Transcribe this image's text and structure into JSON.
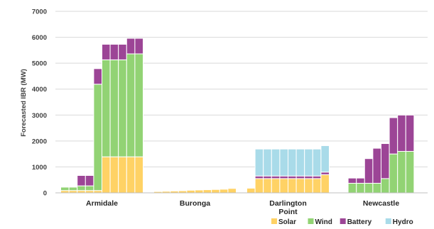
{
  "chart_data": {
    "type": "bar",
    "stacked": true,
    "ylabel": "Forecasted IBR (MW)",
    "ylim": [
      0,
      7000
    ],
    "yticks": [
      0,
      1000,
      2000,
      3000,
      4000,
      5000,
      6000,
      7000
    ],
    "grid": true,
    "legend_position": "bottom-right",
    "groups": [
      {
        "label": "Armidale",
        "stacks": [
          {
            "Solar": 90,
            "Wind": 130,
            "Battery": 0,
            "Hydro": 0
          },
          {
            "Solar": 90,
            "Wind": 130,
            "Battery": 0,
            "Hydro": 0
          },
          {
            "Solar": 90,
            "Wind": 180,
            "Battery": 400,
            "Hydro": 0
          },
          {
            "Solar": 90,
            "Wind": 180,
            "Battery": 400,
            "Hydro": 0
          },
          {
            "Solar": 90,
            "Wind": 4100,
            "Battery": 600,
            "Hydro": 0
          },
          {
            "Solar": 1390,
            "Wind": 3740,
            "Battery": 600,
            "Hydro": 0
          },
          {
            "Solar": 1390,
            "Wind": 3740,
            "Battery": 600,
            "Hydro": 0
          },
          {
            "Solar": 1390,
            "Wind": 3740,
            "Battery": 600,
            "Hydro": 0
          },
          {
            "Solar": 1390,
            "Wind": 3970,
            "Battery": 600,
            "Hydro": 0
          },
          {
            "Solar": 1390,
            "Wind": 3970,
            "Battery": 600,
            "Hydro": 0
          }
        ]
      },
      {
        "label": "Buronga",
        "stacks": [
          {
            "Solar": 50,
            "Wind": 0,
            "Battery": 0,
            "Hydro": 0
          },
          {
            "Solar": 60,
            "Wind": 0,
            "Battery": 0,
            "Hydro": 0
          },
          {
            "Solar": 70,
            "Wind": 0,
            "Battery": 0,
            "Hydro": 0
          },
          {
            "Solar": 80,
            "Wind": 0,
            "Battery": 0,
            "Hydro": 0
          },
          {
            "Solar": 100,
            "Wind": 0,
            "Battery": 0,
            "Hydro": 0
          },
          {
            "Solar": 110,
            "Wind": 0,
            "Battery": 0,
            "Hydro": 0
          },
          {
            "Solar": 120,
            "Wind": 0,
            "Battery": 0,
            "Hydro": 0
          },
          {
            "Solar": 130,
            "Wind": 0,
            "Battery": 0,
            "Hydro": 0
          },
          {
            "Solar": 140,
            "Wind": 0,
            "Battery": 0,
            "Hydro": 0
          },
          {
            "Solar": 170,
            "Wind": 0,
            "Battery": 0,
            "Hydro": 0
          }
        ]
      },
      {
        "label": "Darlington Point",
        "stacks": [
          {
            "Solar": 180,
            "Wind": 0,
            "Battery": 0,
            "Hydro": 0
          },
          {
            "Solar": 550,
            "Wind": 0,
            "Battery": 100,
            "Hydro": 1040
          },
          {
            "Solar": 550,
            "Wind": 0,
            "Battery": 100,
            "Hydro": 1040
          },
          {
            "Solar": 550,
            "Wind": 0,
            "Battery": 100,
            "Hydro": 1040
          },
          {
            "Solar": 550,
            "Wind": 0,
            "Battery": 100,
            "Hydro": 1040
          },
          {
            "Solar": 550,
            "Wind": 0,
            "Battery": 100,
            "Hydro": 1040
          },
          {
            "Solar": 550,
            "Wind": 0,
            "Battery": 100,
            "Hydro": 1040
          },
          {
            "Solar": 550,
            "Wind": 0,
            "Battery": 100,
            "Hydro": 1040
          },
          {
            "Solar": 550,
            "Wind": 0,
            "Battery": 100,
            "Hydro": 1040
          },
          {
            "Solar": 700,
            "Wind": 0,
            "Battery": 100,
            "Hydro": 1020
          }
        ]
      },
      {
        "label": "Newcastle",
        "stacks": [
          {
            "Solar": 0,
            "Wind": 370,
            "Battery": 200,
            "Hydro": 0
          },
          {
            "Solar": 0,
            "Wind": 370,
            "Battery": 200,
            "Hydro": 0
          },
          {
            "Solar": 0,
            "Wind": 370,
            "Battery": 950,
            "Hydro": 0
          },
          {
            "Solar": 0,
            "Wind": 370,
            "Battery": 1350,
            "Hydro": 0
          },
          {
            "Solar": 0,
            "Wind": 550,
            "Battery": 1350,
            "Hydro": 0
          },
          {
            "Solar": 0,
            "Wind": 1500,
            "Battery": 1400,
            "Hydro": 0
          },
          {
            "Solar": 0,
            "Wind": 1600,
            "Battery": 1400,
            "Hydro": 0
          },
          {
            "Solar": 0,
            "Wind": 1600,
            "Battery": 1400,
            "Hydro": 0
          }
        ]
      }
    ],
    "series": [
      {
        "name": "Solar",
        "color": "#FFD265"
      },
      {
        "name": "Wind",
        "color": "#92D374"
      },
      {
        "name": "Battery",
        "color": "#9C4596"
      },
      {
        "name": "Hydro",
        "color": "#A9DBE9"
      }
    ]
  }
}
